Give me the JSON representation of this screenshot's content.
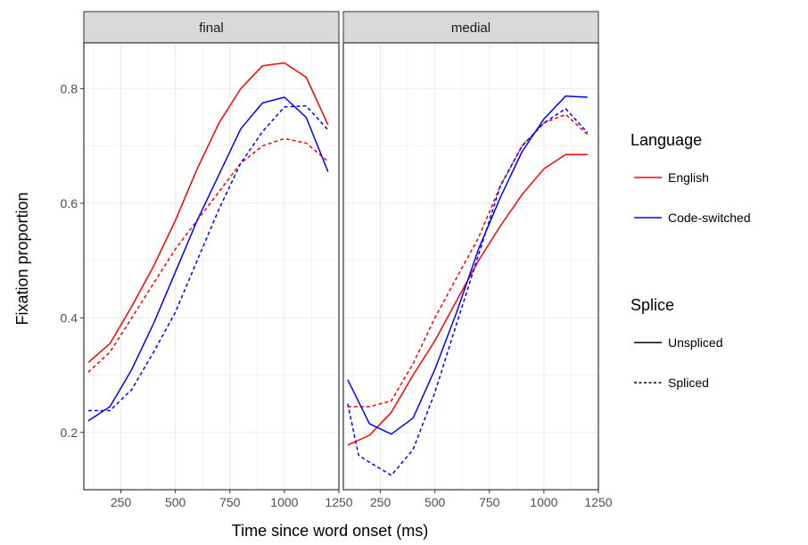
{
  "chart_data": {
    "type": "line",
    "xlabel": "Time since word onset (ms)",
    "ylabel": "Fixation proportion",
    "xlim": [
      80,
      1250
    ],
    "ylim": [
      0.1,
      0.88
    ],
    "x_ticks": [
      250,
      500,
      750,
      1000,
      1250
    ],
    "x_tick_labels": [
      "250",
      "500",
      "750",
      "1000",
      "1250"
    ],
    "y_ticks": [
      0.2,
      0.4,
      0.6,
      0.8
    ],
    "y_tick_labels": [
      "0.2",
      "0.4",
      "0.6",
      "0.8"
    ],
    "grid": true,
    "legend_position": "right",
    "colors": {
      "English": "#ff0000",
      "Code-switched": "#0000ff"
    },
    "legends": [
      {
        "title": "Language",
        "entries": [
          {
            "label": "English",
            "color": "#ff0000",
            "dash": "solid"
          },
          {
            "label": "Code-switched",
            "color": "#0000ff",
            "dash": "solid"
          }
        ]
      },
      {
        "title": "Splice",
        "entries": [
          {
            "label": "Unspliced",
            "color": "#000000",
            "dash": "solid"
          },
          {
            "label": "Spliced",
            "color": "#000000",
            "dash": "dashed"
          }
        ]
      }
    ],
    "panels": [
      {
        "label": "final",
        "series": [
          {
            "language": "English",
            "splice": "Unspliced",
            "x": [
              100,
              200,
              300,
              400,
              500,
              600,
              700,
              800,
              900,
              1000,
              1100,
              1200
            ],
            "y": [
              0.322,
              0.355,
              0.42,
              0.49,
              0.57,
              0.66,
              0.74,
              0.8,
              0.84,
              0.845,
              0.82,
              0.737
            ]
          },
          {
            "language": "English",
            "splice": "Spliced",
            "x": [
              100,
              200,
              300,
              400,
              500,
              600,
              700,
              800,
              900,
              1000,
              1100,
              1200
            ],
            "y": [
              0.305,
              0.34,
              0.4,
              0.46,
              0.52,
              0.57,
              0.62,
              0.67,
              0.7,
              0.713,
              0.705,
              0.673
            ]
          },
          {
            "language": "Code-switched",
            "splice": "Unspliced",
            "x": [
              100,
              200,
              300,
              400,
              500,
              600,
              700,
              800,
              900,
              1000,
              1100,
              1200
            ],
            "y": [
              0.22,
              0.245,
              0.31,
              0.39,
              0.48,
              0.57,
              0.65,
              0.73,
              0.775,
              0.785,
              0.75,
              0.655
            ]
          },
          {
            "language": "Code-switched",
            "splice": "Spliced",
            "x": [
              100,
              200,
              300,
              400,
              500,
              600,
              700,
              800,
              900,
              1000,
              1100,
              1200
            ],
            "y": [
              0.238,
              0.238,
              0.275,
              0.34,
              0.41,
              0.5,
              0.59,
              0.67,
              0.725,
              0.768,
              0.77,
              0.728
            ]
          }
        ]
      },
      {
        "label": "medial",
        "series": [
          {
            "language": "English",
            "splice": "Unspliced",
            "x": [
              100,
              200,
              300,
              400,
              500,
              600,
              700,
              800,
              900,
              1000,
              1100,
              1200
            ],
            "y": [
              0.178,
              0.195,
              0.235,
              0.3,
              0.36,
              0.43,
              0.5,
              0.56,
              0.615,
              0.66,
              0.685,
              0.685
            ]
          },
          {
            "language": "English",
            "splice": "Spliced",
            "x": [
              100,
              200,
              300,
              400,
              500,
              600,
              700,
              800,
              900,
              1000,
              1100,
              1200
            ],
            "y": [
              0.245,
              0.245,
              0.255,
              0.32,
              0.4,
              0.47,
              0.54,
              0.63,
              0.7,
              0.74,
              0.755,
              0.72
            ]
          },
          {
            "language": "Code-switched",
            "splice": "Unspliced",
            "x": [
              100,
              200,
              300,
              400,
              500,
              600,
              700,
              800,
              900,
              1000,
              1100,
              1200
            ],
            "y": [
              0.292,
              0.215,
              0.197,
              0.225,
              0.31,
              0.41,
              0.52,
              0.61,
              0.69,
              0.747,
              0.787,
              0.785
            ]
          },
          {
            "language": "Code-switched",
            "splice": "Spliced",
            "x": [
              100,
              150,
              200,
              300,
              400,
              500,
              600,
              700,
              800,
              900,
              1000,
              1100,
              1200
            ],
            "y": [
              0.25,
              0.16,
              0.148,
              0.125,
              0.17,
              0.27,
              0.39,
              0.51,
              0.63,
              0.7,
              0.74,
              0.765,
              0.723
            ]
          }
        ]
      }
    ]
  }
}
